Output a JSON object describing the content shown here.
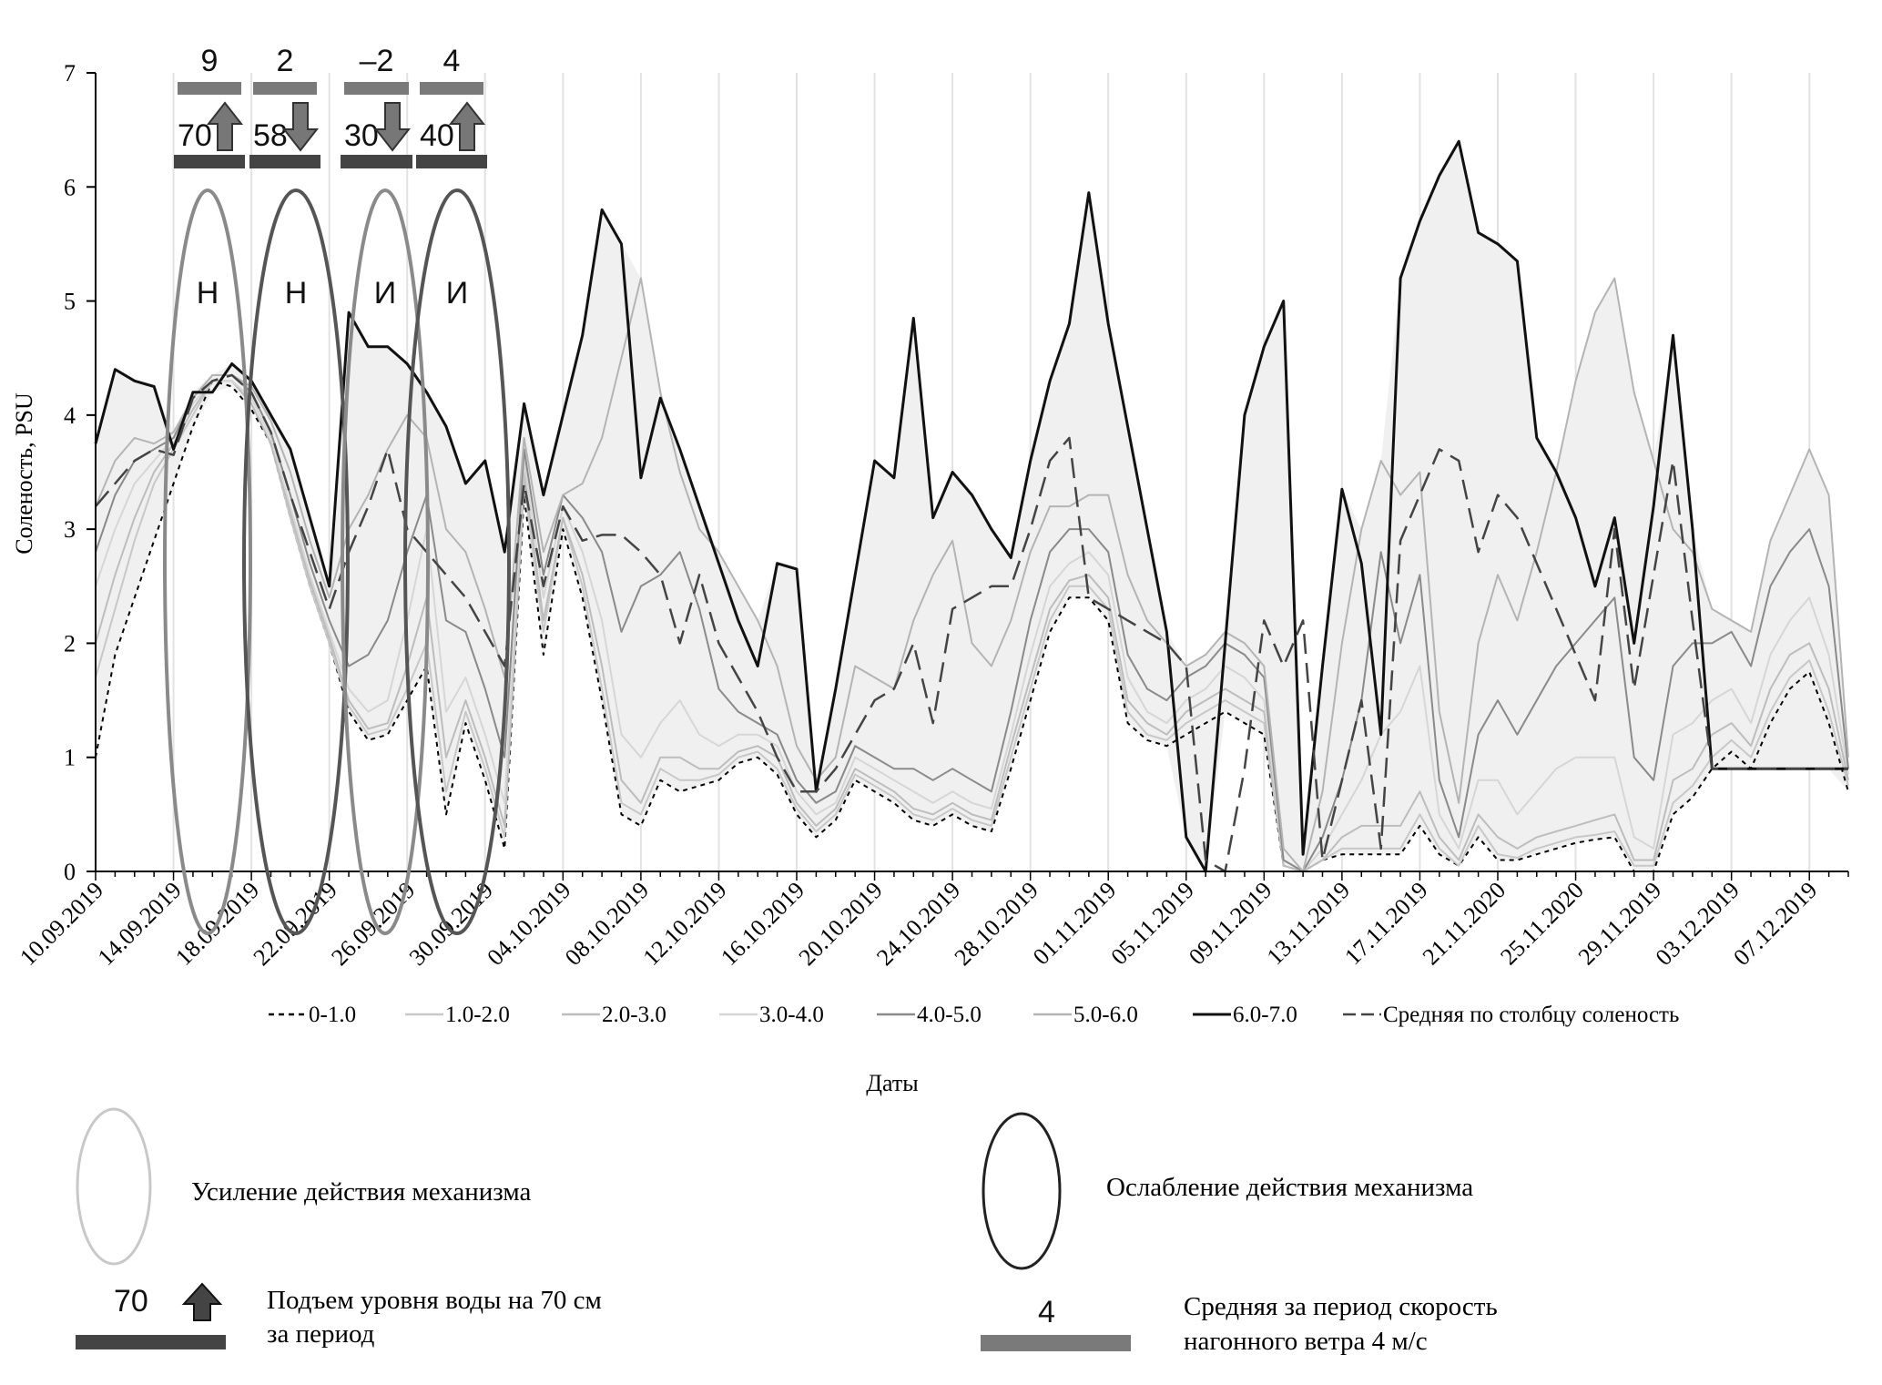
{
  "chart_data": {
    "type": "line",
    "ylabel": "Соленость, PSU",
    "xlabel": "Даты",
    "ylim": [
      0,
      7
    ],
    "yticks": [
      0,
      1,
      2,
      3,
      4,
      5,
      6,
      7
    ],
    "grid": "vertical",
    "xtick_labels": [
      "10.09.2019",
      "14.09.2019",
      "18.09.2019",
      "22.09.2019",
      "26.09.2019",
      "30.09.2019",
      "04.10.2019",
      "08.10.2019",
      "12.10.2019",
      "16.10.2019",
      "20.10.2019",
      "24.10.2019",
      "28.10.2019",
      "01.11.2019",
      "05.11.2019",
      "09.11.2019",
      "13.11.2019",
      "17.11.2019",
      "21.11.2020",
      "25.11.2020",
      "29.11.2019",
      "03.12.2019",
      "07.12.2019"
    ],
    "x": [
      0,
      1,
      2,
      3,
      4,
      5,
      6,
      7,
      8,
      9,
      10,
      11,
      12,
      13,
      14,
      15,
      16,
      17,
      18,
      19,
      20,
      21,
      22,
      23,
      24,
      25,
      26,
      27,
      28,
      29,
      30,
      31,
      32,
      33,
      34,
      35,
      36,
      37,
      38,
      39,
      40,
      41,
      42,
      43,
      44,
      45,
      46,
      47,
      48,
      49,
      50,
      51,
      52,
      53,
      54,
      55,
      56,
      57,
      58,
      59,
      60,
      61,
      62,
      63,
      64,
      65,
      66,
      67,
      68,
      69,
      70,
      71,
      72,
      73,
      74,
      75,
      76,
      77,
      78,
      79,
      80,
      81,
      82,
      83,
      84,
      85,
      86,
      87,
      88,
      89,
      90
    ],
    "series": [
      {
        "name": "0-1.0",
        "style": "dotted",
        "values": [
          1.0,
          1.9,
          2.4,
          2.9,
          3.4,
          3.9,
          4.3,
          4.25,
          4.05,
          3.75,
          3.1,
          2.5,
          2.0,
          1.4,
          1.15,
          1.2,
          1.5,
          1.8,
          0.5,
          1.3,
          0.8,
          0.2,
          3.3,
          1.9,
          3.0,
          2.4,
          1.5,
          0.5,
          0.4,
          0.8,
          0.7,
          0.75,
          0.8,
          0.95,
          1.0,
          0.85,
          0.5,
          0.3,
          0.45,
          0.8,
          0.7,
          0.6,
          0.45,
          0.4,
          0.5,
          0.4,
          0.35,
          0.9,
          1.5,
          2.1,
          2.4,
          2.4,
          2.2,
          1.3,
          1.15,
          1.1,
          1.2,
          1.3,
          1.4,
          1.3,
          1.2,
          0.05,
          0.0,
          0.1,
          0.15,
          0.15,
          0.15,
          0.15,
          0.4,
          0.15,
          0.05,
          0.3,
          0.1,
          0.1,
          0.15,
          0.2,
          0.25,
          0.28,
          0.3,
          0.0,
          0.0,
          0.5,
          0.65,
          0.9,
          1.05,
          0.9,
          1.3,
          1.6,
          1.75,
          1.3,
          0.7
        ]
      },
      {
        "name": "1.0-2.0",
        "style": "solid",
        "values": [
          1.7,
          2.3,
          2.9,
          3.4,
          3.7,
          4.0,
          4.3,
          4.3,
          4.1,
          3.75,
          3.1,
          2.5,
          2.0,
          1.45,
          1.2,
          1.25,
          1.6,
          2.0,
          0.7,
          1.4,
          0.9,
          0.3,
          3.4,
          2.1,
          3.1,
          2.5,
          1.6,
          0.6,
          0.5,
          0.9,
          0.8,
          0.8,
          0.85,
          1.0,
          1.05,
          0.9,
          0.55,
          0.35,
          0.5,
          0.85,
          0.75,
          0.65,
          0.5,
          0.45,
          0.55,
          0.45,
          0.4,
          1.0,
          1.6,
          2.2,
          2.5,
          2.5,
          2.3,
          1.4,
          1.2,
          1.15,
          1.3,
          1.4,
          1.5,
          1.4,
          1.3,
          0.05,
          0.0,
          0.1,
          0.2,
          0.2,
          0.2,
          0.2,
          0.5,
          0.2,
          0.05,
          0.4,
          0.15,
          0.12,
          0.2,
          0.25,
          0.3,
          0.32,
          0.35,
          0.05,
          0.05,
          0.6,
          0.75,
          1.0,
          1.15,
          1.0,
          1.4,
          1.7,
          1.85,
          1.4,
          0.75
        ]
      },
      {
        "name": "2.0-3.0",
        "style": "solid",
        "values": [
          2.0,
          2.6,
          3.1,
          3.5,
          3.75,
          4.05,
          4.3,
          4.3,
          4.1,
          3.75,
          3.15,
          2.55,
          2.05,
          1.5,
          1.25,
          1.3,
          1.8,
          2.4,
          1.0,
          1.5,
          1.0,
          0.4,
          3.5,
          2.2,
          3.1,
          2.6,
          1.8,
          0.8,
          0.6,
          1.0,
          1.0,
          0.9,
          0.9,
          1.05,
          1.1,
          1.0,
          0.6,
          0.4,
          0.55,
          0.9,
          0.8,
          0.7,
          0.55,
          0.5,
          0.6,
          0.5,
          0.45,
          1.1,
          1.7,
          2.3,
          2.55,
          2.6,
          2.4,
          1.5,
          1.3,
          1.2,
          1.4,
          1.5,
          1.6,
          1.5,
          1.4,
          0.05,
          0.0,
          0.1,
          0.3,
          0.4,
          0.4,
          0.4,
          0.7,
          0.3,
          0.1,
          0.5,
          0.3,
          0.2,
          0.3,
          0.35,
          0.4,
          0.45,
          0.5,
          0.1,
          0.1,
          0.8,
          0.9,
          1.2,
          1.3,
          1.1,
          1.6,
          1.9,
          2.0,
          1.6,
          0.8
        ]
      },
      {
        "name": "3.0-4.0",
        "style": "solid",
        "values": [
          2.5,
          3.0,
          3.4,
          3.6,
          3.8,
          4.1,
          4.3,
          4.3,
          4.15,
          3.8,
          3.2,
          2.6,
          2.1,
          1.6,
          1.4,
          1.5,
          2.2,
          3.0,
          1.4,
          1.7,
          1.2,
          0.6,
          3.6,
          2.4,
          3.2,
          2.8,
          2.2,
          1.2,
          1.0,
          1.3,
          1.5,
          1.2,
          1.1,
          1.2,
          1.2,
          1.1,
          0.7,
          0.5,
          0.6,
          1.0,
          0.9,
          0.8,
          0.7,
          0.6,
          0.7,
          0.6,
          0.55,
          1.2,
          1.9,
          2.5,
          2.7,
          2.8,
          2.6,
          1.7,
          1.4,
          1.3,
          1.5,
          1.6,
          1.8,
          1.7,
          1.5,
          0.1,
          0.0,
          0.2,
          0.5,
          0.8,
          1.2,
          1.4,
          1.8,
          0.5,
          0.2,
          0.8,
          0.8,
          0.5,
          0.7,
          0.9,
          1.0,
          1.0,
          1.0,
          0.3,
          0.2,
          1.2,
          1.3,
          1.5,
          1.6,
          1.3,
          1.9,
          2.2,
          2.4,
          1.9,
          0.85
        ]
      },
      {
        "name": "4.0-5.0",
        "style": "solid",
        "values": [
          2.8,
          3.3,
          3.6,
          3.7,
          3.8,
          4.15,
          4.35,
          4.35,
          4.2,
          3.85,
          3.3,
          2.7,
          2.2,
          1.8,
          1.9,
          2.2,
          2.8,
          3.3,
          2.2,
          2.1,
          1.6,
          1.0,
          3.7,
          2.6,
          3.3,
          3.1,
          2.8,
          2.1,
          2.5,
          2.6,
          2.8,
          2.3,
          1.6,
          1.4,
          1.3,
          1.2,
          0.8,
          0.6,
          0.7,
          1.1,
          1.0,
          0.9,
          0.9,
          0.8,
          0.9,
          0.8,
          0.7,
          1.4,
          2.2,
          2.8,
          3.0,
          3.0,
          2.8,
          1.9,
          1.6,
          1.5,
          1.7,
          1.8,
          2.0,
          1.9,
          1.7,
          0.1,
          0.0,
          0.3,
          0.8,
          1.5,
          2.8,
          2.0,
          2.6,
          0.8,
          0.3,
          1.2,
          1.5,
          1.2,
          1.5,
          1.8,
          2.0,
          2.2,
          2.4,
          1.0,
          0.8,
          1.8,
          2.0,
          2.0,
          2.1,
          1.8,
          2.5,
          2.8,
          3.0,
          2.5,
          0.9
        ]
      },
      {
        "name": "5.0-6.0",
        "style": "solid",
        "values": [
          3.2,
          3.6,
          3.8,
          3.75,
          3.85,
          4.15,
          4.35,
          4.35,
          4.25,
          3.95,
          3.5,
          2.9,
          2.4,
          3.0,
          3.3,
          3.7,
          4.0,
          3.8,
          3.0,
          2.8,
          2.3,
          1.7,
          3.8,
          2.8,
          3.3,
          3.4,
          3.8,
          4.5,
          5.2,
          4.2,
          3.5,
          3.0,
          2.8,
          2.5,
          2.2,
          1.8,
          1.1,
          0.8,
          1.0,
          1.8,
          1.7,
          1.6,
          2.2,
          2.6,
          2.9,
          2.0,
          1.8,
          2.2,
          2.8,
          3.2,
          3.2,
          3.3,
          3.3,
          2.6,
          2.2,
          2.0,
          1.8,
          1.9,
          2.1,
          2.0,
          1.8,
          0.2,
          0.0,
          0.7,
          2.0,
          3.0,
          3.6,
          3.3,
          3.5,
          1.4,
          0.6,
          2.0,
          2.6,
          2.2,
          2.8,
          3.5,
          4.3,
          4.9,
          5.2,
          4.2,
          3.6,
          3.0,
          2.8,
          2.3,
          2.2,
          2.1,
          2.9,
          3.3,
          3.7,
          3.3,
          1.0
        ]
      },
      {
        "name": "6.0-7.0",
        "style": "solid",
        "values": [
          3.75,
          4.4,
          4.3,
          4.25,
          3.7,
          4.2,
          4.2,
          4.45,
          4.3,
          4.0,
          3.7,
          3.1,
          2.5,
          4.9,
          4.6,
          4.6,
          4.45,
          4.2,
          3.9,
          3.4,
          3.6,
          2.8,
          4.1,
          3.3,
          4.0,
          4.7,
          5.8,
          5.5,
          3.45,
          4.15,
          3.7,
          3.2,
          2.7,
          2.2,
          1.8,
          2.7,
          2.65,
          0.7,
          1.6,
          2.6,
          3.6,
          3.45,
          4.85,
          3.1,
          3.5,
          3.3,
          3.0,
          2.75,
          3.6,
          4.3,
          4.8,
          5.95,
          4.8,
          3.9,
          3.0,
          2.1,
          0.3,
          0.0,
          2.0,
          4.0,
          4.6,
          5.0,
          0.15,
          1.8,
          3.35,
          2.7,
          1.2,
          5.2,
          5.7,
          6.1,
          6.4,
          5.6,
          5.5,
          5.35,
          3.8,
          3.5,
          3.1,
          2.5,
          3.1,
          2.0,
          3.2,
          4.7,
          3.0,
          0.9,
          0.9,
          0.9,
          0.9,
          0.9,
          0.9,
          0.9,
          0.9
        ]
      },
      {
        "name": "Средняя по столбцу соленость",
        "style": "dashed",
        "values": [
          3.2,
          3.4,
          3.6,
          3.7,
          3.65,
          4.15,
          4.3,
          4.35,
          4.2,
          3.85,
          3.3,
          2.8,
          2.3,
          2.8,
          3.2,
          3.7,
          3.0,
          2.8,
          2.6,
          2.4,
          2.1,
          1.8,
          3.4,
          2.5,
          3.2,
          2.9,
          2.95,
          2.95,
          2.8,
          2.6,
          2.0,
          2.6,
          2.0,
          1.7,
          1.4,
          1.0,
          0.7,
          0.7,
          0.9,
          1.2,
          1.5,
          1.6,
          2.0,
          1.3,
          2.3,
          2.4,
          2.5,
          2.5,
          3.0,
          3.6,
          3.8,
          2.4,
          2.3,
          2.2,
          2.1,
          2.0,
          1.8,
          0.1,
          0.0,
          0.9,
          2.2,
          1.8,
          2.2,
          0.1,
          0.8,
          1.5,
          0.2,
          2.9,
          3.3,
          3.7,
          3.6,
          2.8,
          3.3,
          3.1,
          2.7,
          2.3,
          1.9,
          1.5,
          3.0,
          1.6,
          2.6,
          3.6,
          2.2,
          0.9,
          0.9,
          0.9,
          0.9,
          0.9,
          0.9,
          0.9,
          0.9
        ]
      }
    ],
    "annotations": {
      "periods": [
        {
          "wind": "9",
          "level": "70",
          "level_dir": "up",
          "mark": "Н",
          "strength": "усиление"
        },
        {
          "wind": "2",
          "level": "58",
          "level_dir": "down",
          "mark": "Н",
          "strength": "ослабление"
        },
        {
          "wind": "–2",
          "level": "30",
          "level_dir": "down",
          "mark": "И",
          "strength": "усиление"
        },
        {
          "wind": "4",
          "level": "40",
          "level_dir": "up",
          "mark": "И",
          "strength": "ослабление"
        }
      ]
    }
  },
  "legend_key": {
    "strengthening_label": "Усиление действия механизма",
    "weakening_label": "Ослабление действия механизма",
    "level_value": "70",
    "level_text_line1": "Подъем уровня воды на 70 см",
    "level_text_line2": "за период",
    "wind_value": "4",
    "wind_text_line1": "Средняя за период скорость",
    "wind_text_line2": "нагонного ветра 4 м/с"
  },
  "colors": {
    "strengthening": "#8a8a8a",
    "weakening": "#555555",
    "wind_bar": "#7a7a7a",
    "level_bar": "#444444",
    "fill": "#f0f0f0"
  }
}
